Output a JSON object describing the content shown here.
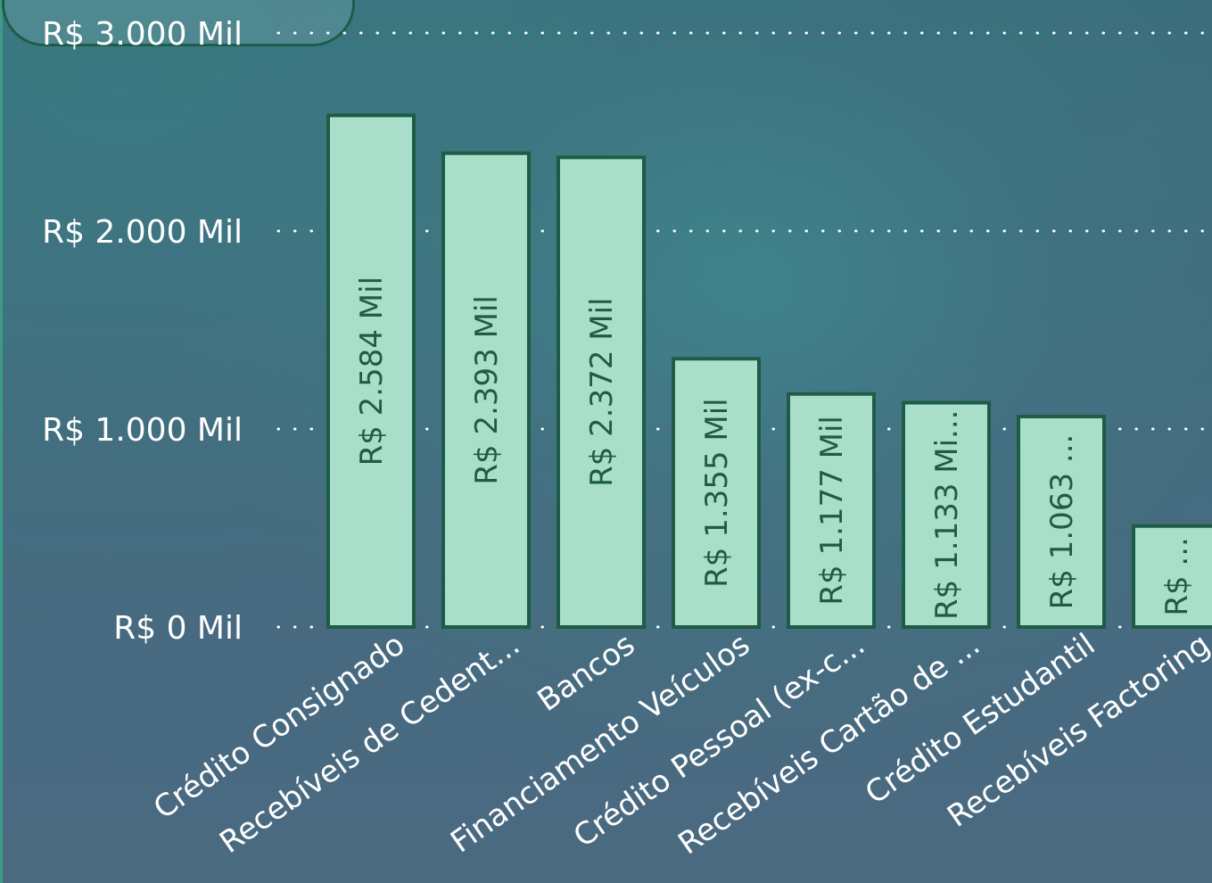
{
  "chart_data": {
    "type": "bar",
    "categories": [
      "Crédito Consignado",
      "Recebíveis de Cedent...",
      "Bancos",
      "Financiamento Veículos",
      "Crédito Pessoal (ex-c...",
      "Recebíveis Cartão de ...",
      "Crédito Estudantil",
      "Recebíveis Factoring"
    ],
    "values": [
      2584,
      2393,
      2372,
      1355,
      1177,
      1133,
      1063,
      510
    ],
    "data_labels": [
      "R$ 2.584 Mil",
      "R$ 2.393 Mil",
      "R$ 2.372 Mil",
      "R$ 1.355 Mil",
      "R$ 1.177 Mil",
      "R$ 1.133 Mi...",
      "R$ 1.063 ...",
      "R$ ..."
    ],
    "y_ticks": [
      0,
      1000,
      2000,
      3000
    ],
    "y_tick_labels": [
      "R$ 0 Mil",
      "R$ 1.000 Mil",
      "R$ 2.000 Mil",
      "R$ 3.000 Mil"
    ],
    "ylim": [
      0,
      3000
    ],
    "grid": true,
    "colors": {
      "bar_fill": "#a9dfca",
      "bar_stroke": "#1e5c45",
      "label": "#1e5c45",
      "axis_text": "#ffffff"
    }
  }
}
